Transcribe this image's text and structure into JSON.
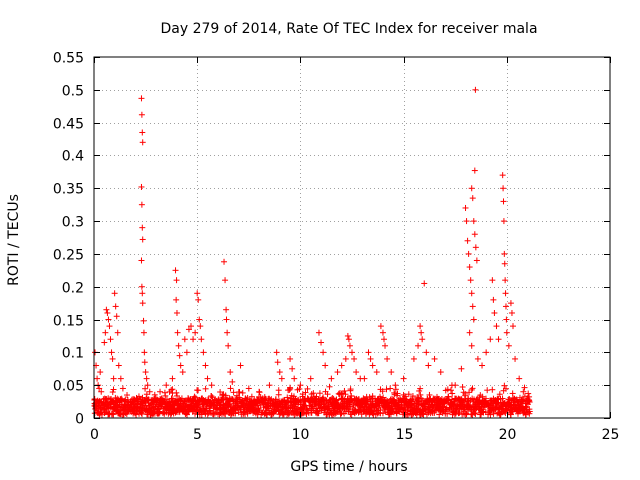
{
  "chart_data": {
    "type": "scatter",
    "title": "Day 279 of 2014, Rate Of TEC Index for receiver mala",
    "xlabel": "GPS time / hours",
    "ylabel": "ROTI / TECUs",
    "xlim": [
      0,
      25
    ],
    "ylim": [
      0,
      0.55
    ],
    "xticks": [
      0,
      5,
      10,
      15,
      20,
      25
    ],
    "yticks": [
      0,
      0.05,
      0.1,
      0.15,
      0.2,
      0.25,
      0.3,
      0.35,
      0.4,
      0.45,
      0.5,
      0.55
    ],
    "grid": true,
    "marker": "+",
    "color": "#ff0000",
    "data_span_hours": [
      0,
      21.1
    ],
    "baseline_band": [
      0.005,
      0.03
    ],
    "points": [
      [
        0.05,
        0.1
      ],
      [
        0.1,
        0.08
      ],
      [
        0.15,
        0.06
      ],
      [
        0.2,
        0.05
      ],
      [
        0.25,
        0.045
      ],
      [
        0.3,
        0.07
      ],
      [
        0.35,
        0.04
      ],
      [
        0.5,
        0.115
      ],
      [
        0.55,
        0.13
      ],
      [
        0.6,
        0.165
      ],
      [
        0.65,
        0.16
      ],
      [
        0.7,
        0.15
      ],
      [
        0.75,
        0.14
      ],
      [
        0.8,
        0.12
      ],
      [
        0.85,
        0.1
      ],
      [
        0.9,
        0.09
      ],
      [
        0.95,
        0.06
      ],
      [
        1.0,
        0.19
      ],
      [
        1.05,
        0.17
      ],
      [
        1.1,
        0.155
      ],
      [
        1.15,
        0.13
      ],
      [
        1.2,
        0.08
      ],
      [
        1.3,
        0.06
      ],
      [
        1.4,
        0.045
      ],
      [
        1.6,
        0.035
      ],
      [
        2.3,
        0.487
      ],
      [
        2.32,
        0.462
      ],
      [
        2.34,
        0.435
      ],
      [
        2.36,
        0.42
      ],
      [
        2.3,
        0.352
      ],
      [
        2.32,
        0.325
      ],
      [
        2.34,
        0.29
      ],
      [
        2.36,
        0.272
      ],
      [
        2.3,
        0.24
      ],
      [
        2.32,
        0.2
      ],
      [
        2.34,
        0.19
      ],
      [
        2.36,
        0.175
      ],
      [
        2.4,
        0.148
      ],
      [
        2.42,
        0.13
      ],
      [
        2.44,
        0.1
      ],
      [
        2.46,
        0.085
      ],
      [
        2.5,
        0.07
      ],
      [
        2.55,
        0.06
      ],
      [
        2.6,
        0.05
      ],
      [
        2.7,
        0.04
      ],
      [
        3.2,
        0.04
      ],
      [
        3.5,
        0.05
      ],
      [
        3.8,
        0.06
      ],
      [
        3.95,
        0.225
      ],
      [
        4.0,
        0.21
      ],
      [
        3.98,
        0.18
      ],
      [
        4.02,
        0.16
      ],
      [
        4.05,
        0.13
      ],
      [
        4.1,
        0.11
      ],
      [
        4.15,
        0.095
      ],
      [
        4.2,
        0.08
      ],
      [
        4.3,
        0.07
      ],
      [
        4.4,
        0.12
      ],
      [
        4.5,
        0.1
      ],
      [
        4.6,
        0.135
      ],
      [
        4.7,
        0.14
      ],
      [
        4.8,
        0.12
      ],
      [
        4.9,
        0.13
      ],
      [
        5.0,
        0.19
      ],
      [
        5.05,
        0.18
      ],
      [
        5.1,
        0.15
      ],
      [
        5.15,
        0.14
      ],
      [
        5.2,
        0.12
      ],
      [
        5.3,
        0.1
      ],
      [
        5.4,
        0.08
      ],
      [
        5.5,
        0.06
      ],
      [
        5.7,
        0.05
      ],
      [
        6.3,
        0.238
      ],
      [
        6.35,
        0.21
      ],
      [
        6.4,
        0.165
      ],
      [
        6.42,
        0.15
      ],
      [
        6.45,
        0.13
      ],
      [
        6.5,
        0.11
      ],
      [
        6.6,
        0.07
      ],
      [
        6.7,
        0.055
      ],
      [
        7.1,
        0.08
      ],
      [
        7.5,
        0.045
      ],
      [
        8.0,
        0.04
      ],
      [
        8.5,
        0.05
      ],
      [
        8.85,
        0.1
      ],
      [
        8.9,
        0.085
      ],
      [
        9.0,
        0.07
      ],
      [
        9.1,
        0.06
      ],
      [
        9.5,
        0.09
      ],
      [
        9.6,
        0.075
      ],
      [
        9.7,
        0.06
      ],
      [
        10.0,
        0.05
      ],
      [
        10.5,
        0.06
      ],
      [
        10.9,
        0.13
      ],
      [
        11.0,
        0.115
      ],
      [
        11.1,
        0.1
      ],
      [
        11.2,
        0.08
      ],
      [
        11.5,
        0.06
      ],
      [
        11.8,
        0.07
      ],
      [
        12.0,
        0.08
      ],
      [
        12.2,
        0.09
      ],
      [
        12.3,
        0.125
      ],
      [
        12.35,
        0.12
      ],
      [
        12.4,
        0.11
      ],
      [
        12.5,
        0.1
      ],
      [
        12.6,
        0.09
      ],
      [
        12.7,
        0.07
      ],
      [
        12.9,
        0.06
      ],
      [
        13.1,
        0.06
      ],
      [
        13.3,
        0.1
      ],
      [
        13.4,
        0.09
      ],
      [
        13.5,
        0.08
      ],
      [
        13.7,
        0.07
      ],
      [
        13.9,
        0.14
      ],
      [
        14.0,
        0.13
      ],
      [
        14.05,
        0.12
      ],
      [
        14.1,
        0.11
      ],
      [
        14.2,
        0.09
      ],
      [
        14.4,
        0.07
      ],
      [
        14.6,
        0.05
      ],
      [
        15.0,
        0.06
      ],
      [
        15.5,
        0.09
      ],
      [
        15.7,
        0.11
      ],
      [
        15.8,
        0.14
      ],
      [
        15.85,
        0.13
      ],
      [
        15.9,
        0.12
      ],
      [
        16.0,
        0.205
      ],
      [
        16.1,
        0.1
      ],
      [
        16.2,
        0.08
      ],
      [
        16.5,
        0.09
      ],
      [
        16.8,
        0.07
      ],
      [
        17.5,
        0.05
      ],
      [
        17.8,
        0.075
      ],
      [
        18.0,
        0.32
      ],
      [
        18.05,
        0.3
      ],
      [
        18.1,
        0.27
      ],
      [
        18.15,
        0.25
      ],
      [
        18.2,
        0.23
      ],
      [
        18.25,
        0.21
      ],
      [
        18.3,
        0.19
      ],
      [
        18.35,
        0.17
      ],
      [
        18.4,
        0.15
      ],
      [
        18.3,
        0.35
      ],
      [
        18.35,
        0.335
      ],
      [
        18.4,
        0.3
      ],
      [
        18.45,
        0.28
      ],
      [
        18.5,
        0.26
      ],
      [
        18.55,
        0.24
      ],
      [
        18.45,
        0.377
      ],
      [
        18.48,
        0.5
      ],
      [
        18.2,
        0.13
      ],
      [
        18.3,
        0.11
      ],
      [
        18.6,
        0.09
      ],
      [
        18.8,
        0.08
      ],
      [
        19.0,
        0.1
      ],
      [
        19.2,
        0.12
      ],
      [
        19.3,
        0.21
      ],
      [
        19.35,
        0.18
      ],
      [
        19.4,
        0.16
      ],
      [
        19.5,
        0.14
      ],
      [
        19.6,
        0.12
      ],
      [
        19.8,
        0.37
      ],
      [
        19.82,
        0.35
      ],
      [
        19.84,
        0.33
      ],
      [
        19.86,
        0.3
      ],
      [
        19.88,
        0.25
      ],
      [
        19.9,
        0.235
      ],
      [
        19.92,
        0.21
      ],
      [
        19.94,
        0.19
      ],
      [
        19.96,
        0.17
      ],
      [
        19.98,
        0.15
      ],
      [
        20.0,
        0.13
      ],
      [
        20.1,
        0.11
      ],
      [
        20.2,
        0.175
      ],
      [
        20.25,
        0.16
      ],
      [
        20.3,
        0.14
      ],
      [
        20.4,
        0.09
      ],
      [
        20.6,
        0.06
      ],
      [
        20.8,
        0.04
      ],
      [
        21.0,
        0.03
      ]
    ]
  }
}
